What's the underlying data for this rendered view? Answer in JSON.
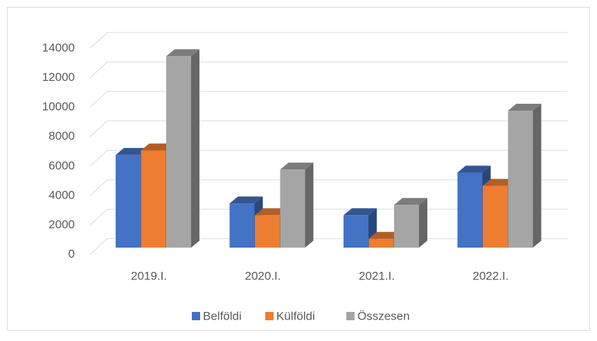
{
  "chart_data": {
    "type": "bar3d",
    "categories": [
      "2019.I.",
      "2020.I.",
      "2021.I.",
      "2022.I."
    ],
    "series": [
      {
        "name": "Belföldi",
        "color": "#4472c4",
        "values": [
          6300,
          3000,
          2200,
          5100
        ]
      },
      {
        "name": "Külföldi",
        "color": "#ed7d31",
        "values": [
          6600,
          2200,
          600,
          4200
        ]
      },
      {
        "name": "Összesen",
        "color": "#a5a5a5",
        "values": [
          13000,
          5300,
          2900,
          9300
        ]
      }
    ],
    "ylim": [
      0,
      14000
    ],
    "yticks": [
      0,
      2000,
      4000,
      6000,
      8000,
      10000,
      12000,
      14000
    ],
    "grid": true,
    "legend": "bottom"
  }
}
